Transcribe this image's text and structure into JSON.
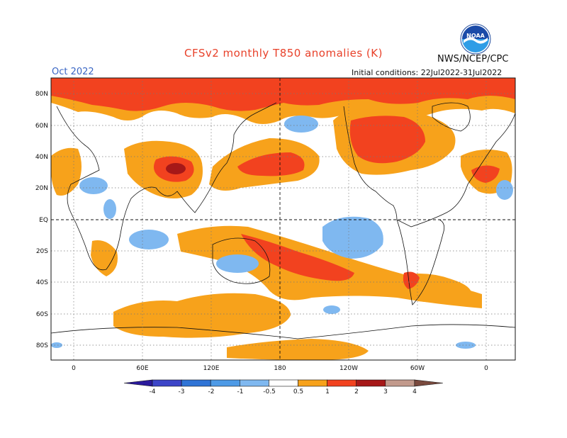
{
  "header": {
    "title": "CFSv2 monthly T850 anomalies (K)",
    "agency": "NWS/NCEP/CPC",
    "month": "Oct 2022",
    "initial_conditions": "Initial conditions: 22Jul2022-31Jul2022",
    "logo_text": "NOAA"
  },
  "map": {
    "lat_labels": [
      "80N",
      "60N",
      "40N",
      "20N",
      "EQ",
      "20S",
      "40S",
      "60S",
      "80S"
    ],
    "lon_labels": [
      "0",
      "60E",
      "120E",
      "180",
      "120W",
      "60W",
      "0"
    ]
  },
  "colorbar": {
    "labels": [
      "-4",
      "-3",
      "-2",
      "-1",
      "-0.5",
      "0.5",
      "1",
      "2",
      "3",
      "4"
    ],
    "colors": [
      "#2a1a9c",
      "#3c45c8",
      "#2f74d6",
      "#4d9ae6",
      "#7fb8f0",
      "#ffffff",
      "#f7a21b",
      "#f2421f",
      "#a61818",
      "#c29a8c",
      "#7a4a3e"
    ]
  },
  "colors": {
    "orange": "#f7a21b",
    "red": "#f2421f",
    "dark_red": "#a61818",
    "light_blue": "#7fb8f0",
    "mid_blue": "#4d9ae6"
  }
}
